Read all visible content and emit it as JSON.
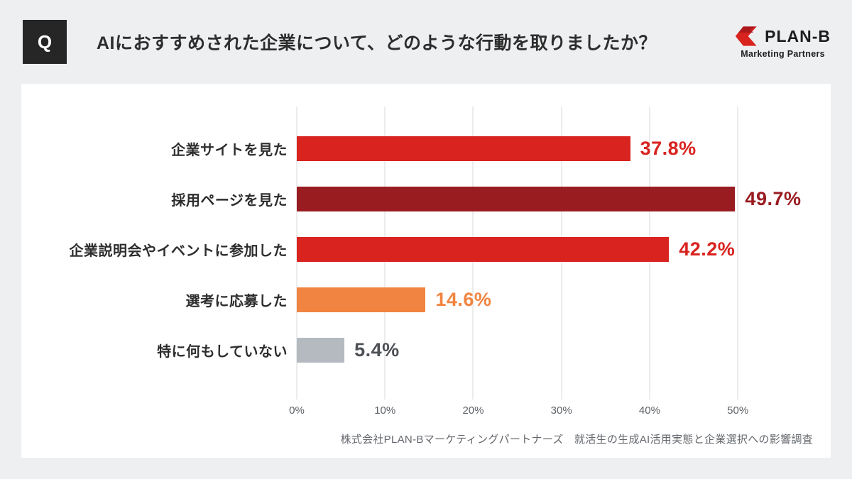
{
  "header": {
    "badge": "Q",
    "title": "AIにおすすめされた企業について、どのような行動を取りましたか？",
    "logo": {
      "brand": "PLAN-B",
      "subtitle": "Marketing Partners",
      "accent_color": "#d8231f"
    }
  },
  "colors": {
    "background": "#edeff1",
    "card": "#ffffff",
    "badge": "#262626",
    "grid": "#d9dadb",
    "red": "#d8231f",
    "dark_red": "#991c21",
    "orange": "#f18440",
    "gray_bar": "#b4bac0",
    "gray_text": "#4d5156"
  },
  "chart_data": {
    "type": "bar",
    "orientation": "horizontal",
    "title": "",
    "categories": [
      "企業サイトを見た",
      "採用ページを見た",
      "企業説明会やイベントに参加した",
      "選考に応募した",
      "特に何もしていない"
    ],
    "values": [
      37.8,
      49.7,
      42.2,
      14.6,
      5.4
    ],
    "value_labels": [
      "37.8%",
      "49.7%",
      "42.2%",
      "14.6%",
      "5.4%"
    ],
    "bar_colors": [
      "#d8231f",
      "#991c21",
      "#d8231f",
      "#f18440",
      "#b4bac0"
    ],
    "value_label_colors": [
      "#d8231f",
      "#991c21",
      "#d8231f",
      "#f18440",
      "#4d5156"
    ],
    "x_tick_values": [
      0,
      10,
      20,
      30,
      40,
      50
    ],
    "x_tick_labels": [
      "0%",
      "10%",
      "20%",
      "30%",
      "40%",
      "50%"
    ],
    "axis": {
      "min": 0,
      "max": 55.3,
      "grid": true,
      "legend": false
    },
    "source": "株式会社PLAN-Bマーケティングパートナーズ　就活生の生成AI活用実態と企業選択への影響調査"
  }
}
